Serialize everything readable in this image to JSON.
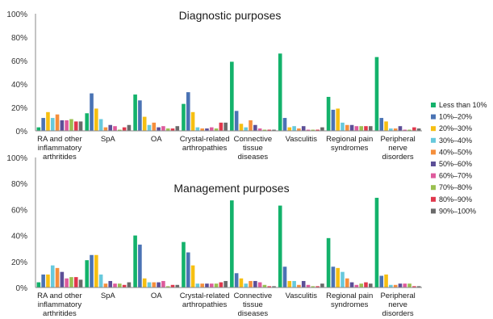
{
  "legend": [
    {
      "label": "Less than 10%",
      "color": "#13b26b"
    },
    {
      "label": "10%–20%",
      "color": "#4a73b4"
    },
    {
      "label": "20%–30%",
      "color": "#f6bf12"
    },
    {
      "label": "30%–40%",
      "color": "#67c9dc"
    },
    {
      "label": "40%–50%",
      "color": "#f58f3c"
    },
    {
      "label": "50%–60%",
      "color": "#5c4f97"
    },
    {
      "label": "60%–70%",
      "color": "#de5b9c"
    },
    {
      "label": "70%–80%",
      "color": "#9ac050"
    },
    {
      "label": "80%–90%",
      "color": "#e0384d"
    },
    {
      "label": "90%–100%",
      "color": "#6a6a6a"
    }
  ],
  "chart_data": [
    {
      "type": "bar",
      "title": "Diagnostic purposes",
      "ylim": [
        0,
        100
      ],
      "yticks": [
        "0%",
        "20%",
        "40%",
        "60%",
        "80%",
        "100%"
      ],
      "categories": [
        [
          "RA and other",
          "inflammatory",
          "arthritides"
        ],
        [
          "SpA"
        ],
        [
          "OA"
        ],
        [
          "Crystal-related",
          "arthropathies"
        ],
        [
          "Connective",
          "tissue",
          "diseases"
        ],
        [
          "Vasculitis"
        ],
        [
          "Regional pain",
          "syndromes"
        ],
        [
          "Peripheral",
          "nerve",
          "disorders"
        ]
      ],
      "series": [
        {
          "name": "Less than 10%",
          "values": [
            3,
            15,
            31,
            23,
            59,
            66,
            29,
            63
          ]
        },
        {
          "name": "10%–20%",
          "values": [
            11,
            32,
            26,
            33,
            17,
            11,
            18,
            11
          ]
        },
        {
          "name": "20%–30%",
          "values": [
            16,
            19,
            12,
            16,
            6,
            3,
            19,
            8
          ]
        },
        {
          "name": "30%–40%",
          "values": [
            11,
            10,
            5,
            3,
            3,
            4,
            7,
            2
          ]
        },
        {
          "name": "40%–50%",
          "values": [
            14,
            3,
            7,
            2,
            9,
            2,
            5,
            2
          ]
        },
        {
          "name": "50%–60%",
          "values": [
            9,
            5,
            3,
            2,
            5,
            4,
            5,
            4
          ]
        },
        {
          "name": "60%–70%",
          "values": [
            9,
            4,
            4,
            3,
            2,
            1,
            4,
            1
          ]
        },
        {
          "name": "70%–80%",
          "values": [
            10,
            1,
            2,
            2,
            1,
            1,
            4,
            1
          ]
        },
        {
          "name": "80%–90%",
          "values": [
            8,
            3,
            2,
            7,
            1,
            1,
            4,
            3
          ]
        },
        {
          "name": "90%–100%",
          "values": [
            8,
            5,
            4,
            7,
            1,
            3,
            4,
            2
          ]
        }
      ]
    },
    {
      "type": "bar",
      "title": "Management purposes",
      "ylim": [
        0,
        100
      ],
      "yticks": [
        "0%",
        "20%",
        "40%",
        "60%",
        "80%",
        "100%"
      ],
      "categories": [
        [
          "RA and other",
          "inflammatory",
          "arthritides"
        ],
        [
          "SpA"
        ],
        [
          "OA"
        ],
        [
          "Crystal-related",
          "arthropathies"
        ],
        [
          "Connective",
          "tissue",
          "diseases"
        ],
        [
          "Vasculitis"
        ],
        [
          "Regional pain",
          "syndromes"
        ],
        [
          "Peripheral",
          "nerve",
          "disorders"
        ]
      ],
      "series": [
        {
          "name": "Less than 10%",
          "values": [
            4,
            21,
            40,
            35,
            67,
            63,
            38,
            69
          ]
        },
        {
          "name": "10%–20%",
          "values": [
            10,
            25,
            33,
            27,
            11,
            16,
            16,
            9
          ]
        },
        {
          "name": "20%–30%",
          "values": [
            10,
            25,
            7,
            17,
            7,
            5,
            15,
            10
          ]
        },
        {
          "name": "30%–40%",
          "values": [
            17,
            10,
            4,
            3,
            3,
            5,
            12,
            2
          ]
        },
        {
          "name": "40%–50%",
          "values": [
            15,
            3,
            4,
            3,
            5,
            2,
            7,
            2
          ]
        },
        {
          "name": "50%–60%",
          "values": [
            12,
            5,
            4,
            3,
            5,
            5,
            4,
            3
          ]
        },
        {
          "name": "60%–70%",
          "values": [
            7,
            3,
            5,
            3,
            4,
            2,
            2,
            3
          ]
        },
        {
          "name": "70%–80%",
          "values": [
            8,
            3,
            1,
            3,
            2,
            1,
            3,
            3
          ]
        },
        {
          "name": "80%–90%",
          "values": [
            8,
            2,
            2,
            4,
            1,
            1,
            4,
            1
          ]
        },
        {
          "name": "90%–100%",
          "values": [
            6,
            4,
            2,
            5,
            1,
            3,
            3,
            1
          ]
        }
      ]
    }
  ]
}
